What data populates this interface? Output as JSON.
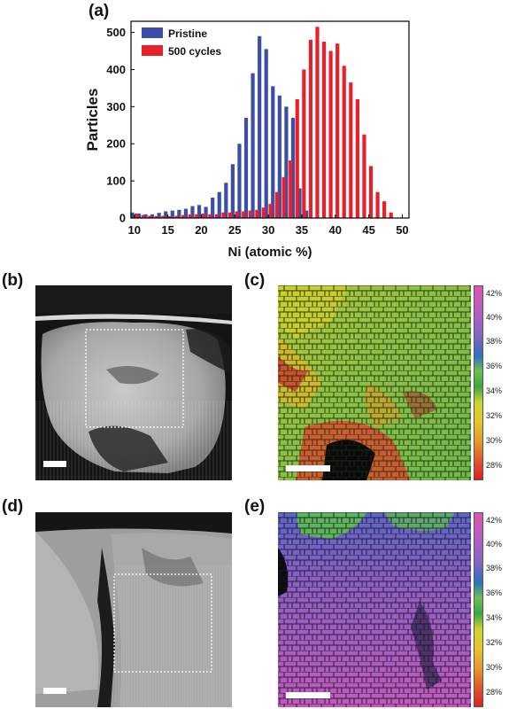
{
  "panels": {
    "a": "(a)",
    "b": "(b)",
    "c": "(c)",
    "d": "(d)",
    "e": "(e)"
  },
  "chart_data": {
    "type": "bar",
    "xlabel": "Ni (atomic %)",
    "ylabel": "Particles",
    "xlim": [
      9.5,
      51
    ],
    "ylim": [
      0,
      530
    ],
    "xticks": [
      10,
      15,
      20,
      25,
      30,
      35,
      40,
      45,
      50
    ],
    "yticks": [
      0,
      100,
      200,
      300,
      400,
      500
    ],
    "legend_position": "top-left",
    "series": [
      {
        "name": "Pristine",
        "color": "#3b4fa8",
        "x": [
          10,
          11,
          12,
          13,
          14,
          15,
          16,
          17,
          18,
          19,
          20,
          21,
          22,
          23,
          24,
          25,
          26,
          27,
          28,
          29,
          30,
          31,
          32,
          33,
          34,
          35,
          36
        ],
        "values": [
          15,
          12,
          10,
          10,
          14,
          18,
          20,
          22,
          25,
          32,
          35,
          30,
          55,
          70,
          95,
          145,
          200,
          270,
          390,
          490,
          455,
          355,
          330,
          300,
          270,
          80,
          20
        ]
      },
      {
        "name": "500 cycles",
        "color": "#e8202a",
        "x": [
          10,
          11,
          12,
          13,
          14,
          15,
          16,
          17,
          18,
          19,
          20,
          21,
          22,
          23,
          24,
          25,
          26,
          27,
          28,
          29,
          30,
          31,
          32,
          33,
          34,
          35,
          36,
          37,
          38,
          39,
          40,
          41,
          42,
          43,
          44,
          45,
          46,
          47,
          48
        ],
        "values": [
          12,
          8,
          6,
          5,
          6,
          5,
          6,
          8,
          10,
          10,
          12,
          10,
          10,
          15,
          15,
          18,
          18,
          20,
          22,
          28,
          38,
          70,
          110,
          155,
          320,
          400,
          480,
          515,
          475,
          450,
          470,
          410,
          365,
          320,
          225,
          140,
          70,
          45,
          15
        ]
      }
    ]
  },
  "colorbar": {
    "labels": [
      "42%",
      "40%",
      "38%",
      "36%",
      "34%",
      "32%",
      "30%",
      "28%"
    ]
  },
  "scalebars": [
    {
      "id": "b"
    },
    {
      "id": "c"
    },
    {
      "id": "d"
    },
    {
      "id": "e"
    }
  ]
}
